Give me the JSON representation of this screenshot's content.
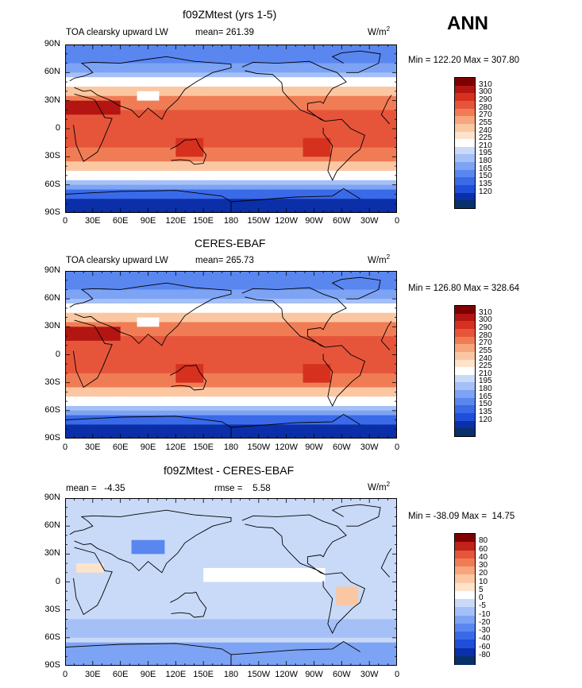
{
  "season": "ANN",
  "colors": {
    "abs_scale": [
      "#08306b",
      "#0a2fa8",
      "#1f4fd8",
      "#3a6ae8",
      "#5a86f0",
      "#7da3f4",
      "#a5c0f6",
      "#c8daf8",
      "#ffffff",
      "#fde3cc",
      "#fbc7a2",
      "#f7a57c",
      "#f07c55",
      "#e6553a",
      "#d6301f",
      "#b31612",
      "#7f0000"
    ],
    "diff_scale": [
      "#08306b",
      "#0a2fa8",
      "#1f4fd8",
      "#3a6ae8",
      "#5a86f0",
      "#7da3f4",
      "#a5c0f6",
      "#c8daf8",
      "#ffffff",
      "#fde3cc",
      "#fbc7a2",
      "#f7a57c",
      "#f07c55",
      "#e6553a",
      "#c0231a",
      "#7f0000"
    ]
  },
  "axes": {
    "lat_labels": [
      "90N",
      "60N",
      "30N",
      "0",
      "30S",
      "60S",
      "90S"
    ],
    "lon_labels": [
      "0",
      "30E",
      "60E",
      "90E",
      "120E",
      "150E",
      "180",
      "150W",
      "120W",
      "90W",
      "60W",
      "30W",
      "0"
    ]
  },
  "chart_data": [
    {
      "type": "heatmap",
      "title": "f09ZMtest (yrs 1-5)",
      "left_label": "TOA clearsky upward LW",
      "mean_label": "mean= 261.39",
      "units": "W/m",
      "units_sup": "2",
      "min": 122.2,
      "max": 307.8,
      "minmax_label": "Min = 122.20 Max = 307.80",
      "colorbar_levels": [
        "310",
        "300",
        "290",
        "280",
        "270",
        "255",
        "240",
        "225",
        "210",
        "195",
        "180",
        "165",
        "150",
        "135",
        "120"
      ]
    },
    {
      "type": "heatmap",
      "title": "CERES-EBAF",
      "left_label": "TOA clearsky upward LW",
      "mean_label": "mean= 265.73",
      "units": "W/m",
      "units_sup": "2",
      "min": 126.8,
      "max": 328.64,
      "minmax_label": "Min = 126.80 Max = 328.64",
      "colorbar_levels": [
        "310",
        "300",
        "290",
        "280",
        "270",
        "255",
        "240",
        "225",
        "210",
        "195",
        "180",
        "165",
        "150",
        "135",
        "120"
      ]
    },
    {
      "type": "heatmap",
      "title": "f09ZMtest - CERES-EBAF",
      "mean_label": "mean =   -4.35",
      "rmse_label": "rmse =    5.58",
      "units": "W/m",
      "units_sup": "2",
      "min": -38.09,
      "max": 14.75,
      "minmax_label": "Min = -38.09 Max =  14.75",
      "colorbar_levels": [
        "80",
        "60",
        "40",
        "30",
        "20",
        "10",
        "5",
        "0",
        "-5",
        "-10",
        "-20",
        "-30",
        "-40",
        "-60",
        "-80"
      ]
    }
  ]
}
